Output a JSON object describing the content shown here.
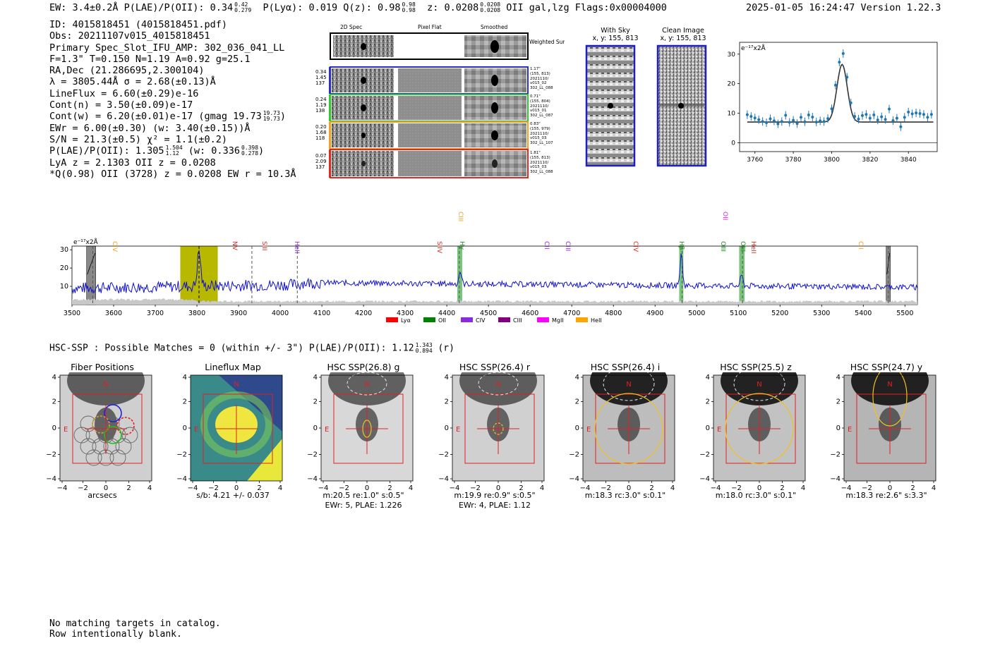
{
  "header": {
    "left": "EW: 3.4±0.2Å  P(LAE)/P(OII): 0.34",
    "left_sup": "0.42",
    "left_sub": "0.279",
    "plya": "P(Lyα): 0.019  Q(z): 0.98",
    "qz_sup": "0.98",
    "qz_sub": "0.98",
    "z": "z: 0.0208",
    "z_sup": "0.0208",
    "z_sub": "0.0208",
    "z_tail": "OII   gal,lzg  Flags:0x00004000",
    "right": "2025-01-05 16:24:47  Version 1.22.3"
  },
  "info": {
    "id": "ID: 4015818451 (4015818451.pdf)",
    "obs": "Obs: 20211107v015_4015818451",
    "primary": "Primary Spec_Slot_IFU_AMP: 302_036_041_LL",
    "fwhm": "F=1.3\"  T=0.150  N=1.19  A=0.92  g=25.1",
    "radec": "RA,Dec (21.286695,2.300104)",
    "lambda": "λ = 3805.44Å  σ = 2.68(±0.13)Å",
    "lineflux": "LineFlux = 6.60(±0.29)e-16",
    "contn": "Cont(n) = 3.50(±0.09)e-17",
    "contw": "Cont(w) = 6.20(±0.01)e-17 (gmag 19.73",
    "contw_sup": "19.73",
    "contw_sub": "19.73",
    "contw_tail": ")",
    "ewr": "EWr = 6.00(±0.30) (w: 3.40(±0.15))Å",
    "sn": "S/N = 21.3(±0.5)  χ² = 1.1(±0.2)",
    "plae": "P(LAE)/P(OII): 1.305",
    "plae_sup": "1.504",
    "plae_sub": "1.12",
    "plae_mid": "(w: 0.336",
    "plae2_sup": "0.398",
    "plae2_sub": "0.278",
    "plae_tail": ")",
    "lya": "LyA z = 2.1303  OII z = 0.0208",
    "qline": "*Q(0.98) OII (3728) z = 0.0208  EW r = 10.3Å"
  },
  "cutouts": {
    "col_labels": [
      "2D Spec",
      "Pixel Flat",
      "Smoothed"
    ],
    "weighted": "Weighted Sum",
    "rows": [
      {
        "left": [
          "0.34",
          "1.45",
          "137"
        ],
        "right": [
          "1.17\"",
          "(155, 813)",
          "2021110/",
          "v015_02",
          "302_LL_088"
        ],
        "color": "#2c2cc8"
      },
      {
        "left": [
          "0.24",
          "1.19",
          "138"
        ],
        "right": [
          "0.71\"",
          "(155, 804)",
          "2021110/",
          "v015_01",
          "302_LL_087"
        ],
        "color": "#2ec82e"
      },
      {
        "left": [
          "0.20",
          "1.68",
          "118"
        ],
        "right": [
          "0.83\"",
          "(155, 979)",
          "2021110/",
          "v015_03",
          "302_LL_107"
        ],
        "color": "#f2a11c"
      },
      {
        "left": [
          "0.07",
          "2.09",
          "137"
        ],
        "right": [
          "1.81\"",
          "(155, 813)",
          "2021110/",
          "v015_03",
          "302_LL_088"
        ],
        "color": "#e0281e"
      }
    ]
  },
  "sky": {
    "with_sky_title": "With Sky",
    "with_sky_xy": "x, y: 155, 813",
    "clean_title": "Clean Image",
    "clean_xy": "x, y: 155, 813"
  },
  "zoom_plot": {
    "unit": "e⁻¹⁷x2Å",
    "xticks": [
      "3760",
      "3780",
      "3800",
      "3820",
      "3840"
    ],
    "yticks": [
      "0",
      "10",
      "20",
      "30"
    ]
  },
  "spectrum": {
    "unit": "e⁻¹⁷x2Å",
    "xticks": [
      "3500",
      "3600",
      "3700",
      "3800",
      "3900",
      "4000",
      "4100",
      "4200",
      "4300",
      "4400",
      "4500",
      "4600",
      "4700",
      "4800",
      "4900",
      "5000",
      "5100",
      "5200",
      "5300",
      "5400",
      "5500"
    ],
    "yticks": [
      "10",
      "20",
      "30"
    ],
    "lines": [
      {
        "label": "CIV",
        "color": "#f2a11c"
      },
      {
        "label": "NV",
        "color": "#e0281e"
      },
      {
        "label": "SiII",
        "color": "#e0281e"
      },
      {
        "label": "HeII",
        "color": "#8a2be2"
      },
      {
        "label": "SiIV",
        "color": "#e0281e"
      },
      {
        "label": "CIII",
        "color": "#f2a11c"
      },
      {
        "label": "Hγ",
        "color": "#1a8a1a"
      },
      {
        "label": "CII",
        "color": "#8a2be2"
      },
      {
        "label": "CIII",
        "color": "#8a2be2"
      },
      {
        "label": "CIV",
        "color": "#e0281e"
      },
      {
        "label": "Hβ",
        "color": "#1a8a1a"
      },
      {
        "label": "OII",
        "color": "#e020e0"
      },
      {
        "label": "OIII",
        "color": "#1a8a1a"
      },
      {
        "label": "OIII",
        "color": "#1a8a1a"
      },
      {
        "label": "HeII",
        "color": "#e0281e"
      },
      {
        "label": "CII",
        "color": "#f2a11c"
      }
    ],
    "legend": [
      {
        "label": "Lyα",
        "color": "#ff0000"
      },
      {
        "label": "OII",
        "color": "#008000"
      },
      {
        "label": "CIV",
        "color": "#8a2be2"
      },
      {
        "label": "CIII",
        "color": "#800080"
      },
      {
        "label": "MgII",
        "color": "#ff00ff"
      },
      {
        "label": "HeII",
        "color": "#ffa500"
      }
    ]
  },
  "hsc_line": "HSC-SSP : Possible Matches = 0 (within +/- 3\")  P(LAE)/P(OII): 1.12",
  "hsc_sup": "1.343",
  "hsc_sub": "0.894",
  "hsc_tail": "(r)",
  "cutout_panels": [
    {
      "title": "Fiber Positions",
      "caption1": "arcsecs",
      "caption2": ""
    },
    {
      "title": "Lineflux Map",
      "caption1": "s/b: 4.21 +/- 0.037",
      "caption2": ""
    },
    {
      "title": "HSC SSP(26.8) g",
      "caption1": "m:20.5  re:1.0\"  s:0.5\"",
      "caption2": "EWr: 5, PLAE: 1.226"
    },
    {
      "title": "HSC SSP(26.4) r",
      "caption1": "m:19.9  re:0.9\"  s:0.5\"",
      "caption2": "EWr: 4, PLAE: 1.12"
    },
    {
      "title": "HSC SSP(26.4) i",
      "caption1": "m:18.3 rc:3.0\"  s:0.1\"",
      "caption2": ""
    },
    {
      "title": "HSC SSP(25.5) z",
      "caption1": "m:18.0 rc:3.0\"  s:0.1\"",
      "caption2": ""
    },
    {
      "title": "HSC SSP(24.7) y",
      "caption1": "m:18.3  re:2.6\"  s:3.3\"",
      "caption2": ""
    }
  ],
  "cutout_axis": {
    "ticks": [
      "−4",
      "−2",
      "0",
      "2",
      "4"
    ],
    "north": "N",
    "east": "E"
  },
  "footer": {
    "line1": "No matching targets in catalog.",
    "line2": "Row intentionally blank."
  },
  "chart_data": {
    "type": "line",
    "title": "",
    "xlabel": "",
    "ylabel": "e⁻¹⁷x2Å",
    "xlim": [
      3500,
      5530
    ],
    "ylim": [
      0,
      32
    ],
    "emission_line_markers": [
      3550,
      3805,
      3932,
      4041,
      4430,
      4965,
      5110,
      5460
    ],
    "highlight_band": [
      3760,
      3850
    ],
    "grey_bands": [
      [
        3535,
        3557
      ],
      [
        5455,
        5465
      ]
    ],
    "green_bands": [
      [
        4425,
        4437
      ],
      [
        4958,
        4968
      ],
      [
        5102,
        5115
      ]
    ],
    "zoom_fit": {
      "xlim": [
        3752,
        3855
      ],
      "ylim": [
        -3,
        34
      ],
      "continuum": 7.0,
      "peak_wavelength": 3805.44,
      "peak_height": 26.5,
      "sigma": 2.68,
      "points": [
        [
          3756,
          9.5
        ],
        [
          3758,
          8.9
        ],
        [
          3760,
          8.4
        ],
        [
          3762,
          7.8
        ],
        [
          3764,
          7.2
        ],
        [
          3766,
          6.8
        ],
        [
          3768,
          8.1
        ],
        [
          3770,
          7.4
        ],
        [
          3772,
          6.4
        ],
        [
          3774,
          7.2
        ],
        [
          3776,
          9.3
        ],
        [
          3778,
          6.9
        ],
        [
          3780,
          7.6
        ],
        [
          3782,
          6.5
        ],
        [
          3784,
          8.6
        ],
        [
          3786,
          7.1
        ],
        [
          3788,
          9.4
        ],
        [
          3790,
          8.7
        ],
        [
          3792,
          7.0
        ],
        [
          3794,
          7.4
        ],
        [
          3796,
          7.2
        ],
        [
          3798,
          8.2
        ],
        [
          3800,
          11.5
        ],
        [
          3802,
          19.5
        ],
        [
          3804,
          27.3
        ],
        [
          3806,
          30.2
        ],
        [
          3808,
          22.2
        ],
        [
          3810,
          13.5
        ],
        [
          3812,
          8.9
        ],
        [
          3814,
          8.0
        ],
        [
          3816,
          9.2
        ],
        [
          3818,
          9.6
        ],
        [
          3820,
          8.3
        ],
        [
          3822,
          9.4
        ],
        [
          3824,
          7.7
        ],
        [
          3826,
          8.8
        ],
        [
          3828,
          7.9
        ],
        [
          3830,
          11.4
        ],
        [
          3832,
          7.5
        ],
        [
          3834,
          8.3
        ],
        [
          3836,
          5.4
        ],
        [
          3838,
          8.6
        ],
        [
          3840,
          10.4
        ],
        [
          3842,
          9.8
        ],
        [
          3844,
          10.1
        ],
        [
          3846,
          9.9
        ],
        [
          3848,
          9.6
        ],
        [
          3850,
          8.6
        ],
        [
          3852,
          9.6
        ]
      ]
    }
  }
}
